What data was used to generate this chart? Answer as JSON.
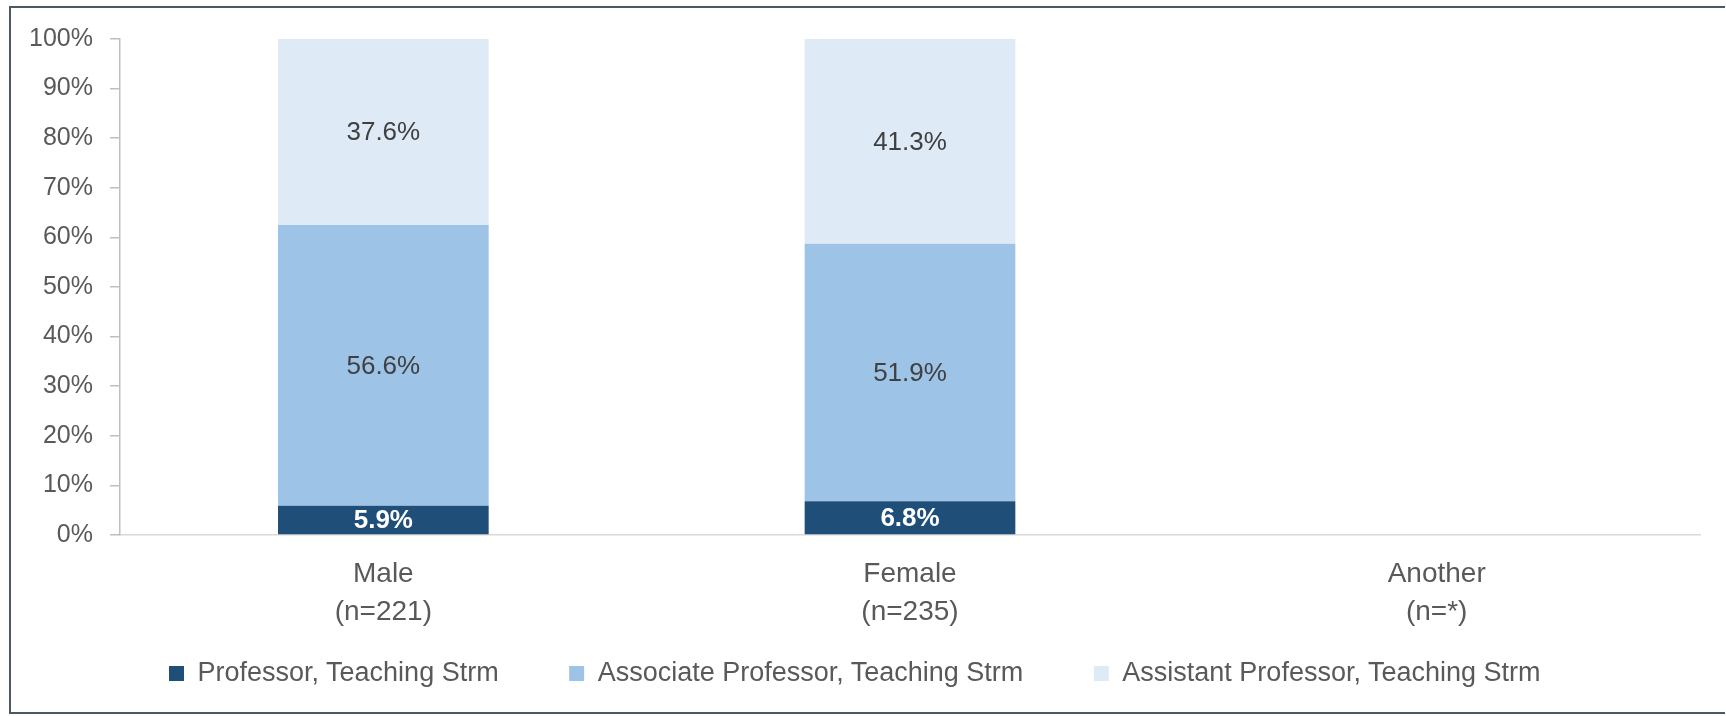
{
  "chart_data": {
    "type": "bar",
    "stacked": true,
    "categories": [
      "Male\n(n=221)",
      "Female\n(n=235)",
      "Another\n(n=*)"
    ],
    "series": [
      {
        "name": "Professor, Teaching Strm",
        "color": "#1f4e79",
        "values": [
          5.9,
          6.8,
          null
        ],
        "value_labels": [
          "5.9%",
          "6.8%",
          null
        ]
      },
      {
        "name": "Associate Professor, Teaching Strm",
        "color": "#9dc3e6",
        "values": [
          56.6,
          51.9,
          null
        ],
        "value_labels": [
          "56.6%",
          "51.9%",
          null
        ]
      },
      {
        "name": "Assistant Professor, Teaching Strm",
        "color": "#deebf7",
        "values": [
          37.6,
          41.3,
          null
        ],
        "value_labels": [
          "37.6%",
          "41.3%",
          null
        ]
      }
    ],
    "ylim": [
      0,
      100
    ],
    "yticks": [
      {
        "value": 0,
        "label": "0%"
      },
      {
        "value": 10,
        "label": "10%"
      },
      {
        "value": 20,
        "label": "20%"
      },
      {
        "value": 30,
        "label": "30%"
      },
      {
        "value": 40,
        "label": "40%"
      },
      {
        "value": 50,
        "label": "50%"
      },
      {
        "value": 60,
        "label": "60%"
      },
      {
        "value": 70,
        "label": "70%"
      },
      {
        "value": 80,
        "label": "80%"
      },
      {
        "value": 90,
        "label": "90%"
      },
      {
        "value": 100,
        "label": "100%"
      }
    ],
    "grid": false,
    "legend": "bottom"
  }
}
